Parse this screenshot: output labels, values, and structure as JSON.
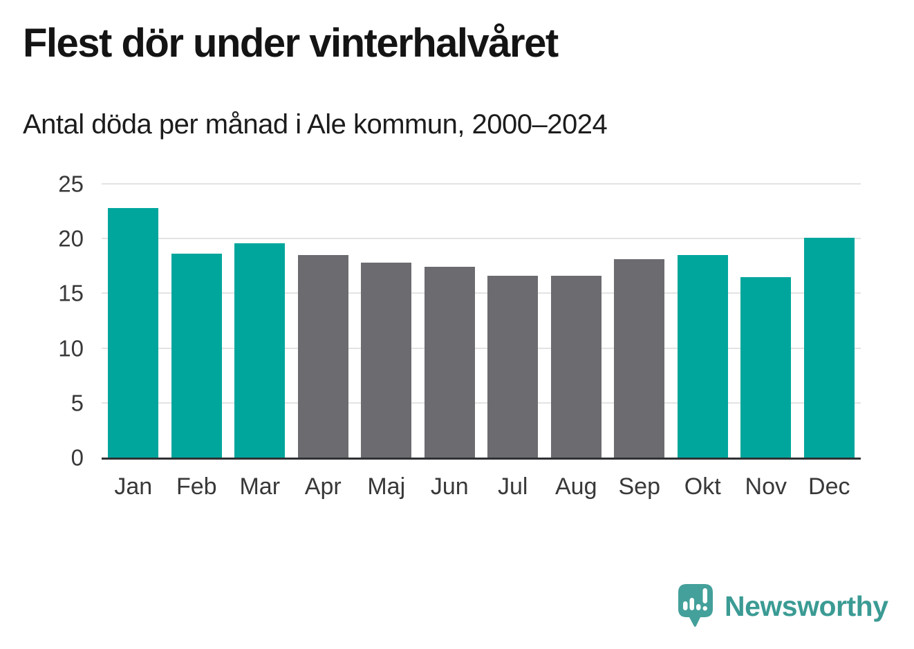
{
  "header": {
    "title": "Flest dör under vinterhalvåret",
    "subtitle": "Antal döda per månad i Ale kommun, 2000–2024"
  },
  "chart_data": {
    "type": "bar",
    "categories": [
      "Jan",
      "Feb",
      "Mar",
      "Apr",
      "Maj",
      "Jun",
      "Jul",
      "Aug",
      "Sep",
      "Okt",
      "Nov",
      "Dec"
    ],
    "values": [
      22.8,
      18.6,
      19.6,
      18.5,
      17.8,
      17.4,
      16.6,
      16.6,
      18.1,
      18.5,
      16.5,
      20.1
    ],
    "bar_colors": [
      "teal",
      "teal",
      "teal",
      "gray",
      "gray",
      "gray",
      "gray",
      "gray",
      "gray",
      "teal",
      "teal",
      "teal"
    ],
    "palette": {
      "teal": "#00a69c",
      "gray": "#6b6b70"
    },
    "title": "Flest dör under vinterhalvåret",
    "subtitle": "Antal döda per månad i Ale kommun, 2000–2024",
    "xlabel": "",
    "ylabel": "",
    "ylim": [
      0,
      25
    ],
    "yticks": [
      0,
      5,
      10,
      15,
      20,
      25
    ],
    "grid": true,
    "legend": false,
    "axis_line_color": "#2e3133",
    "gridline_color": "#e3e3e3"
  },
  "footer": {
    "brand": "Newsworthy",
    "brand_color": "#3b9b94",
    "logo_bubble_color": "#44a09a",
    "logo_glyph": "bar-chart-exclamation-speech-bubble"
  }
}
